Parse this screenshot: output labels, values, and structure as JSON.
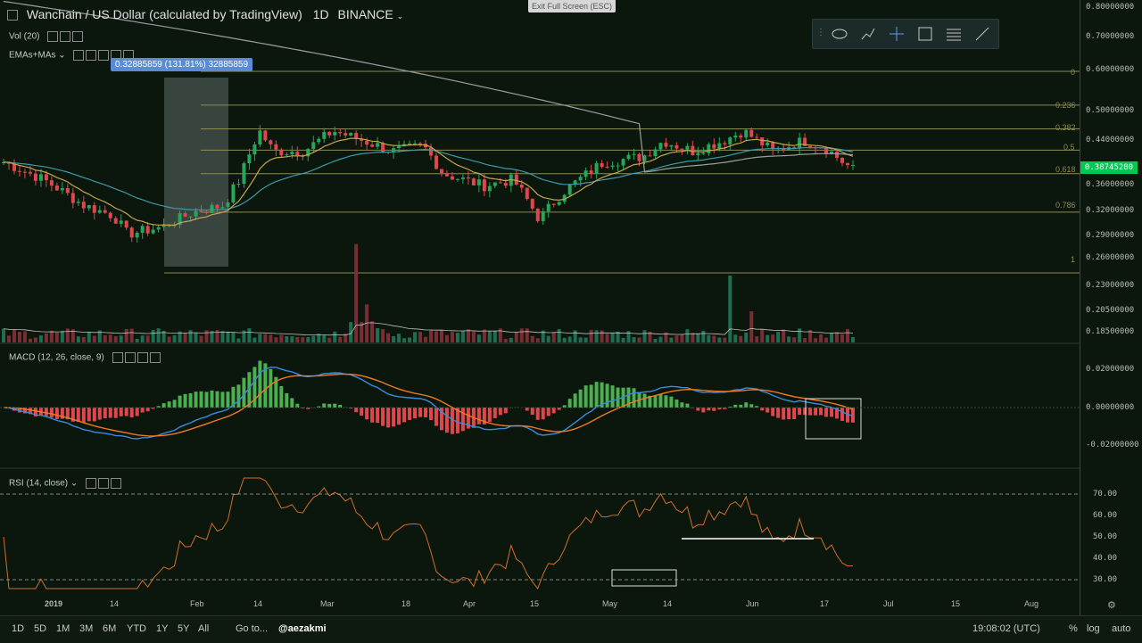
{
  "header": {
    "title": "Wanchain / US Dollar (calculated by TradingView)",
    "interval": "1D",
    "exchange": "BINANCE",
    "exit_fullscreen": "Exit Full Screen (ESC)"
  },
  "indicators": {
    "vol": "Vol (20)",
    "emas": "EMAs+MAs",
    "macd": "MACD (12, 26, close, 9)",
    "rsi": "RSI (14, close)"
  },
  "measure_label": "0.32885859 (131.81%) 32885859",
  "price_axis_ticks": [
    "0.80000000",
    "0.70000000",
    "0.60000000",
    "0.50000000",
    "0.44000000",
    "0.40000000",
    "0.36000000",
    "0.32000000",
    "0.29000000",
    "0.26000000",
    "0.23000000",
    "0.20500000",
    "0.18500000"
  ],
  "macd_axis_ticks": [
    "0.02000000",
    "0.00000000",
    "-0.02000000"
  ],
  "rsi_axis_ticks": [
    "70.00",
    "60.00",
    "50.00",
    "40.00",
    "30.00"
  ],
  "current_price": "0.38745280",
  "fib_levels": [
    {
      "label": "0",
      "value": 0.6
    },
    {
      "label": "0.236",
      "value": 0.516
    },
    {
      "label": "0.382",
      "value": 0.464
    },
    {
      "label": "0.5",
      "value": 0.422
    },
    {
      "label": "0.618",
      "value": 0.38
    },
    {
      "label": "0.786",
      "value": 0.32
    },
    {
      "label": "1",
      "value": 0.244
    }
  ],
  "time_axis": [
    "2019",
    "14",
    "Feb",
    "14",
    "Mar",
    "18",
    "Apr",
    "15",
    "May",
    "14",
    "Jun",
    "17",
    "Jul",
    "15",
    "Aug"
  ],
  "bottom_bar": {
    "ranges": [
      "1D",
      "5D",
      "1M",
      "3M",
      "6M",
      "YTD",
      "1Y",
      "5Y",
      "All"
    ],
    "goto": "Go to...",
    "watermark": "@aezakmi",
    "clock": "19:08:02 (UTC)",
    "pct": "%",
    "log": "log",
    "auto": "auto"
  },
  "colors": {
    "up": "#26a65b",
    "down": "#e0474c",
    "ema_blue": "#4aa3c9",
    "ma_orange": "#c9a347",
    "fib": "#8e8a55",
    "macd": "#3a8be0",
    "signal": "#f07a24",
    "rsi": "#d06f2a"
  },
  "chart_data": {
    "type": "line",
    "title": "Wanchain / US Dollar",
    "xlabel": "",
    "ylabel": "",
    "x": [
      "2019-01-01",
      "2019-01-14",
      "2019-02-01",
      "2019-02-14",
      "2019-03-01",
      "2019-03-18",
      "2019-04-01",
      "2019-04-15",
      "2019-05-01",
      "2019-05-14",
      "2019-06-01",
      "2019-06-17",
      "2019-06-21"
    ],
    "series": [
      {
        "name": "Close",
        "values": [
          0.4,
          0.35,
          0.33,
          0.3,
          0.31,
          0.44,
          0.47,
          0.43,
          0.37,
          0.36,
          0.44,
          0.43,
          0.387
        ]
      }
    ],
    "ylim": [
      0.185,
      0.8
    ]
  }
}
